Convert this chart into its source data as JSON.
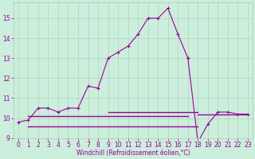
{
  "xlabel": "Windchill (Refroidissement éolien,°C)",
  "bg_color": "#cceedd",
  "line_color": "#990099",
  "grid_color": "#aaccaa",
  "x_hours": [
    0,
    1,
    2,
    3,
    4,
    5,
    6,
    7,
    8,
    9,
    10,
    11,
    12,
    13,
    14,
    15,
    16,
    17,
    18,
    19,
    20,
    21,
    22,
    23
  ],
  "series_main": [
    9.8,
    9.9,
    10.5,
    10.5,
    10.3,
    10.5,
    10.5,
    11.6,
    11.5,
    13.0,
    13.3,
    13.6,
    14.2,
    15.0,
    15.0,
    15.5,
    14.2,
    13.0,
    8.8,
    9.7,
    10.3,
    10.3,
    10.2,
    10.2
  ],
  "flat_lines": [
    {
      "x0": 1,
      "x1": 18,
      "y": 9.6
    },
    {
      "x0": 1,
      "x1": 17,
      "y": 10.1
    },
    {
      "x0": 9,
      "x1": 18,
      "y": 10.3
    },
    {
      "x0": 18,
      "x1": 23,
      "y": 10.2
    }
  ],
  "ylim": [
    9.0,
    15.8
  ],
  "yticks": [
    9,
    10,
    11,
    12,
    13,
    14,
    15
  ],
  "xticks": [
    0,
    1,
    2,
    3,
    4,
    5,
    6,
    7,
    8,
    9,
    10,
    11,
    12,
    13,
    14,
    15,
    16,
    17,
    18,
    19,
    20,
    21,
    22,
    23
  ],
  "xlabel_fontsize": 5.5,
  "tick_fontsize": 5.5
}
